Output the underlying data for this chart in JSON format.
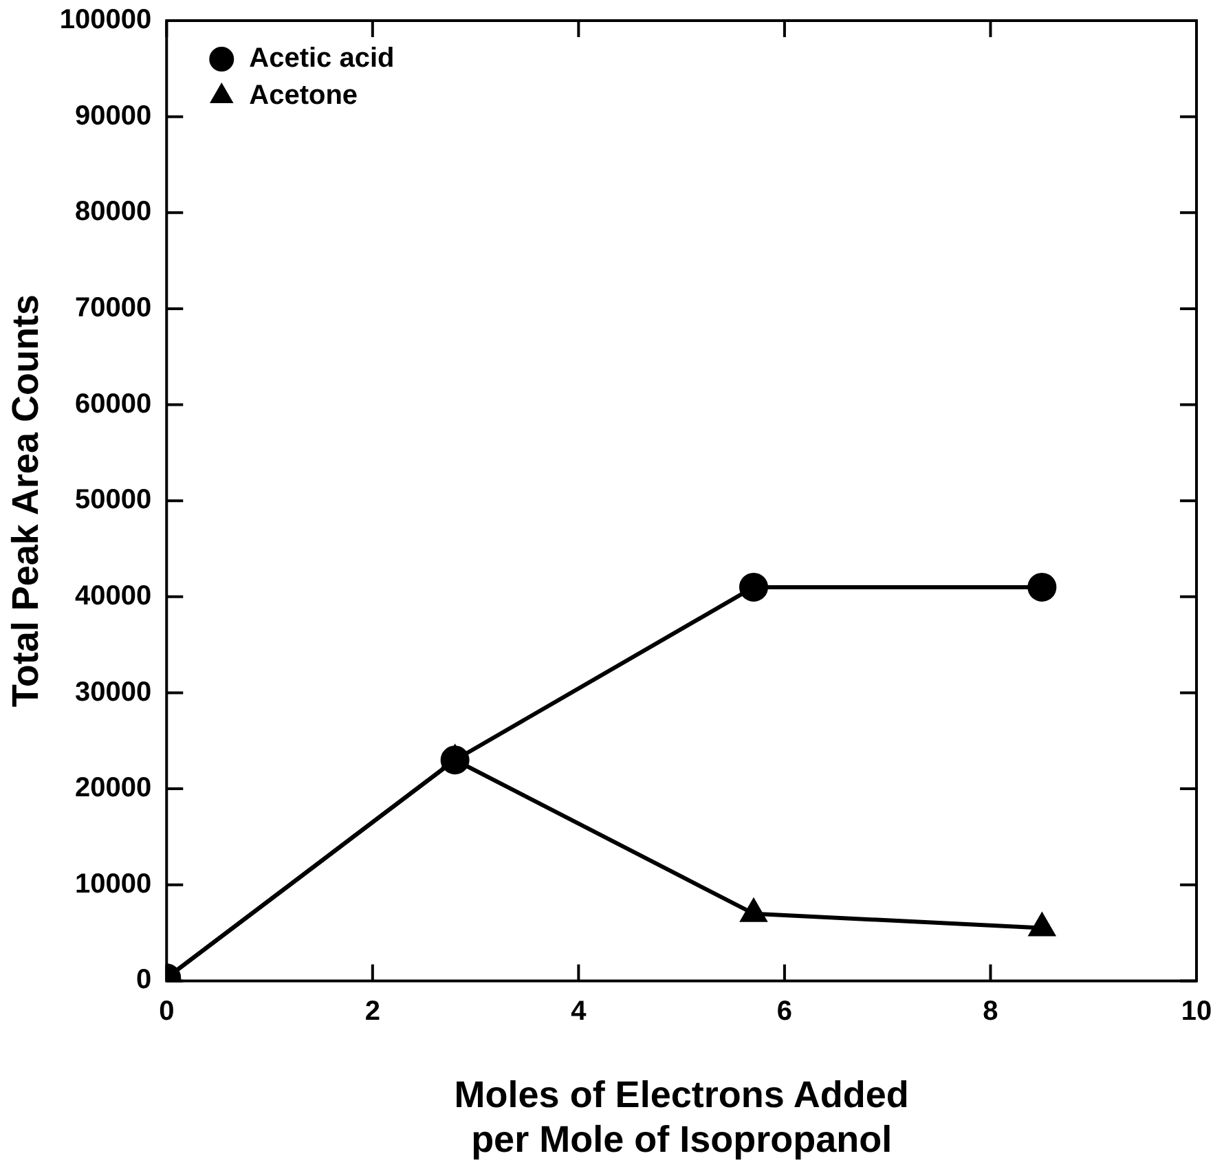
{
  "chart_data": {
    "type": "line",
    "xlabel": "Moles of Electrons Added\nper Mole of Isopropanol",
    "ylabel": "Total Peak Area Counts",
    "xlim": [
      0,
      10
    ],
    "xticks": [
      0,
      2,
      4,
      6,
      8,
      10
    ],
    "ylim": [
      0,
      100000
    ],
    "yticks": [
      0,
      10000,
      20000,
      30000,
      40000,
      50000,
      60000,
      70000,
      80000,
      90000,
      100000
    ],
    "legend": "top left",
    "grid": false,
    "series": [
      {
        "name": "Acetic acid",
        "color": "#000000",
        "marker": "circle",
        "x": [
          0,
          2.8,
          5.7,
          8.5
        ],
        "values": [
          300,
          23000,
          41000,
          41000
        ]
      },
      {
        "name": "Acetone",
        "color": "#000000",
        "marker": "triangle",
        "x": [
          0,
          2.8,
          5.7,
          8.5
        ],
        "values": [
          300,
          23000,
          7000,
          5500
        ]
      }
    ]
  }
}
